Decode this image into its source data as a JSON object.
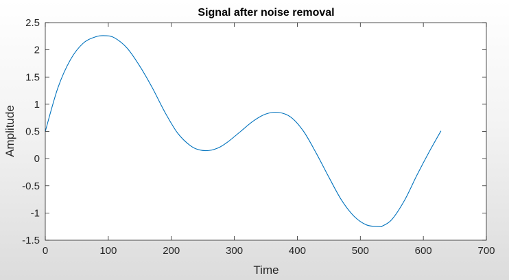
{
  "chart_data": {
    "type": "line",
    "title": "Signal after noise removal",
    "xlabel": "Time",
    "ylabel": "Amplitude",
    "xlim": [
      0,
      700
    ],
    "ylim": [
      -1.5,
      2.5
    ],
    "xticks": [
      "0",
      "100",
      "200",
      "300",
      "400",
      "500",
      "600",
      "700"
    ],
    "yticks": [
      "-1.5",
      "-1",
      "-0.5",
      "0",
      "0.5",
      "1",
      "1.5",
      "2",
      "2.5"
    ],
    "grid": false,
    "legend": "none",
    "series": [
      {
        "color": "#0072bd",
        "x": [
          0,
          20,
          40,
          60,
          80,
          95,
          110,
          130,
          150,
          170,
          190,
          210,
          230,
          245,
          260,
          275,
          290,
          310,
          330,
          350,
          370,
          390,
          410,
          430,
          450,
          470,
          490,
          510,
          530,
          535,
          550,
          570,
          590,
          610,
          628
        ],
        "y": [
          0.5,
          1.3,
          1.82,
          2.12,
          2.24,
          2.26,
          2.22,
          2.03,
          1.7,
          1.3,
          0.85,
          0.47,
          0.24,
          0.16,
          0.15,
          0.2,
          0.31,
          0.5,
          0.69,
          0.82,
          0.85,
          0.76,
          0.5,
          0.1,
          -0.34,
          -0.76,
          -1.06,
          -1.22,
          -1.25,
          -1.24,
          -1.12,
          -0.77,
          -0.3,
          0.14,
          0.51
        ]
      }
    ]
  }
}
